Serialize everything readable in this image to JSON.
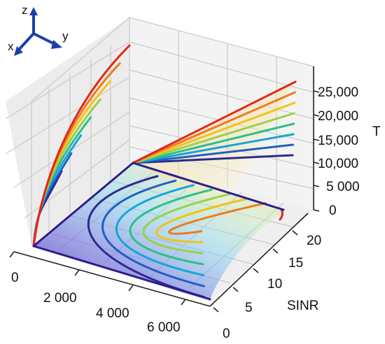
{
  "chart_data": {
    "type": "surface-3d",
    "axes": {
      "x": {
        "ticks": [
          "0",
          "2 000",
          "4 000",
          "6 000"
        ],
        "label": ""
      },
      "y": {
        "ticks": [
          "0",
          "5",
          "10",
          "15",
          "20"
        ],
        "label": "SINR"
      },
      "z": {
        "ticks": [
          "0",
          "5 000",
          "10,000",
          "15,000",
          "20,000",
          "25,000"
        ],
        "label": "T"
      }
    },
    "orientation": {
      "x": "x",
      "y": "y",
      "z": "z"
    },
    "grid": true,
    "series_colors": [
      "#2b2a8f",
      "#1f5fc4",
      "#14a6d9",
      "#2dbf8a",
      "#9bd04a",
      "#f2c318",
      "#f07b1a",
      "#e0261c"
    ]
  }
}
